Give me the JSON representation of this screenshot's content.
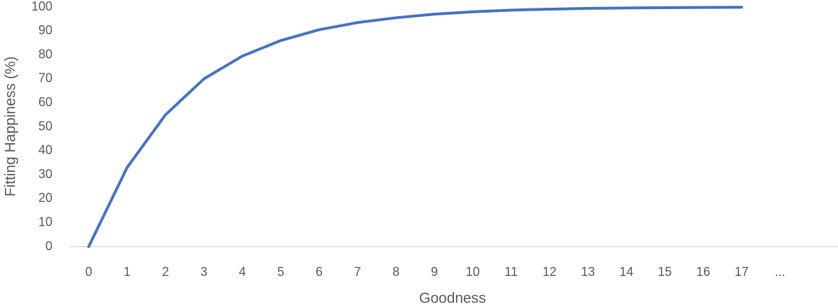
{
  "chart_data": {
    "type": "line",
    "x_label": "Goodness",
    "y_label": "Fitting Happiness (%)",
    "categories": [
      "0",
      "1",
      "2",
      "3",
      "4",
      "5",
      "6",
      "7",
      "8",
      "9",
      "10",
      "11",
      "12",
      "13",
      "14",
      "15",
      "16",
      "17",
      "..."
    ],
    "values": [
      0,
      33,
      55,
      70,
      79.5,
      86,
      90.5,
      93.5,
      95.5,
      97,
      98,
      98.7,
      99.1,
      99.4,
      99.6,
      99.7,
      99.8,
      99.9,
      null
    ],
    "color": "#4472c4",
    "ylim": [
      0,
      100
    ],
    "yticks": [
      0,
      10,
      20,
      30,
      40,
      50,
      60,
      70,
      80,
      90,
      100
    ],
    "grid": false
  }
}
